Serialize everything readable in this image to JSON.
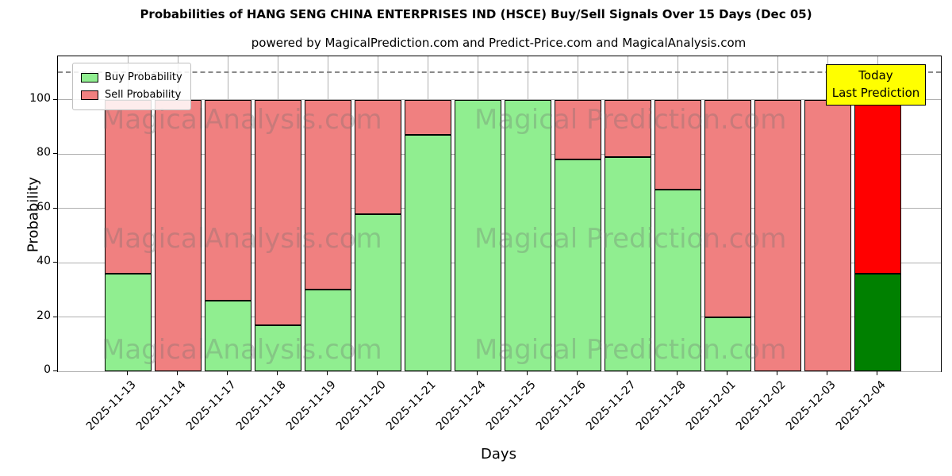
{
  "title": "Probabilities of HANG SENG CHINA ENTERPRISES IND (HSCE) Buy/Sell Signals Over 15 Days (Dec 05)",
  "subtitle": "powered by MagicalPrediction.com and Predict-Price.com and MagicalAnalysis.com",
  "legend": {
    "buy_label": "Buy Probability",
    "sell_label": "Sell Probability"
  },
  "annotation": {
    "line1": "Today",
    "line2": "Last Prediction"
  },
  "watermarks": {
    "left_text": "MagicalAnalysis.com",
    "right_text": "Magical Prediction.com"
  },
  "chart_data": {
    "type": "bar",
    "stacked": true,
    "title": "Probabilities of HANG SENG CHINA ENTERPRISES IND (HSCE) Buy/Sell Signals Over 15 Days (Dec 05)",
    "xlabel": "Days",
    "ylabel": "Probability",
    "categories": [
      "2025-11-13",
      "2025-11-14",
      "2025-11-17",
      "2025-11-18",
      "2025-11-19",
      "2025-11-20",
      "2025-11-21",
      "2025-11-24",
      "2025-11-25",
      "2025-11-26",
      "2025-11-27",
      "2025-11-28",
      "2025-12-01",
      "2025-12-02",
      "2025-12-03",
      "2025-12-04"
    ],
    "series": [
      {
        "name": "Buy Probability",
        "color": "#90ee90",
        "values": [
          36,
          0,
          26,
          17,
          30,
          58,
          87,
          100,
          100,
          78,
          79,
          67,
          20,
          0,
          0,
          36
        ]
      },
      {
        "name": "Sell Probability",
        "color": "#f08080",
        "values": [
          64,
          100,
          74,
          83,
          70,
          42,
          13,
          0,
          0,
          22,
          21,
          33,
          80,
          100,
          100,
          64
        ]
      }
    ],
    "today_bar": {
      "index": 15,
      "buy_color": "#008000",
      "sell_color": "#ff0000"
    },
    "yticks": [
      0,
      20,
      40,
      60,
      80,
      100
    ],
    "ylim": [
      0,
      116
    ],
    "dashed_line_y": 110,
    "grid": true,
    "legend_position": "upper left",
    "bar_edge_color": "#000000"
  }
}
